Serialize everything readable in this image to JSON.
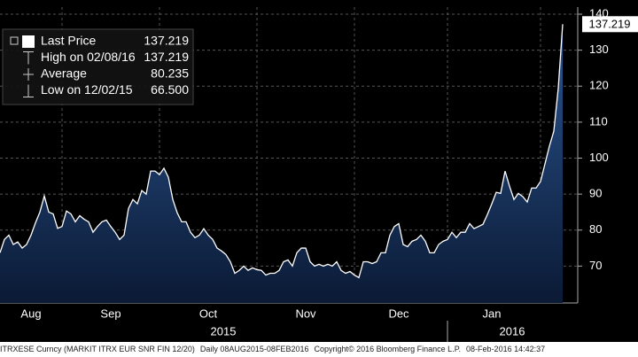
{
  "chart_data": {
    "type": "area",
    "legend": [
      {
        "label": "Last Price",
        "value": "137.219"
      },
      {
        "label": "High on 02/08/16",
        "value": "137.219"
      },
      {
        "label": "Average",
        "value": "80.235"
      },
      {
        "label": "Low on 12/02/15",
        "value": "66.500"
      }
    ],
    "categories": [
      null,
      null,
      null,
      null,
      null,
      null,
      null,
      "Aug",
      null,
      null,
      null,
      null,
      null,
      null,
      null,
      null,
      null,
      null,
      null,
      null,
      null,
      null,
      null,
      null,
      null,
      "Sep",
      null,
      null,
      null,
      null,
      null,
      null,
      null,
      null,
      null,
      null,
      null,
      null,
      null,
      null,
      null,
      null,
      null,
      null,
      null,
      null,
      null,
      "Oct",
      null,
      null,
      null,
      null,
      null,
      null,
      null,
      null,
      null,
      null,
      null,
      null,
      null,
      null,
      null,
      null,
      null,
      null,
      null,
      null,
      null,
      "Nov",
      null,
      null,
      null,
      null,
      null,
      null,
      null,
      null,
      null,
      null,
      null,
      null,
      null,
      null,
      null,
      null,
      null,
      null,
      null,
      null,
      "Dec",
      null,
      null,
      null,
      null,
      null,
      null,
      null,
      null,
      null,
      null,
      null,
      null,
      null,
      null,
      null,
      null,
      null,
      null,
      null,
      null,
      "Jan",
      null,
      null,
      null,
      null,
      null,
      null,
      null,
      null,
      null,
      null,
      null,
      null,
      null,
      null,
      null,
      null
    ],
    "values": [
      73.7,
      77.4,
      78.6,
      76,
      76.7,
      75,
      76,
      78.6,
      82,
      85,
      89.5,
      85,
      84.5,
      80.5,
      81,
      85.3,
      84.5,
      82.3,
      84,
      83,
      82.3,
      79.4,
      81,
      82.3,
      82.8,
      81,
      79.4,
      77.4,
      78.6,
      86,
      88.5,
      87.3,
      91,
      90,
      96.4,
      96.4,
      95.4,
      97.2,
      94.7,
      88.5,
      84.8,
      82.3,
      82.3,
      79.4,
      77.9,
      78.6,
      80.4,
      78.6,
      77.4,
      75,
      74.2,
      73.2,
      71.2,
      68,
      68.8,
      70,
      68.8,
      69.5,
      69,
      68.8,
      67.5,
      68,
      68,
      68.8,
      71.2,
      71.7,
      70,
      73.7,
      75,
      75,
      71.2,
      70,
      70.5,
      70,
      70.5,
      70,
      71.2,
      68.8,
      68,
      68.5,
      67.5,
      66.8,
      71.2,
      71.2,
      70.7,
      71.2,
      73.7,
      73.7,
      78.6,
      81,
      81.8,
      76,
      75.4,
      76.9,
      77.4,
      78.6,
      76.9,
      73.7,
      73.7,
      76,
      76.9,
      77.4,
      79.4,
      77.9,
      79.4,
      79.4,
      81.8,
      80.4,
      81,
      81.6,
      84.3,
      87.3,
      90.5,
      90.2,
      96.4,
      92.2,
      88.5,
      90.2,
      89.3,
      87.8,
      91.7,
      91.7,
      93.5,
      98.4,
      103.3,
      107.5,
      119.4,
      137.219
    ],
    "year_labels": [
      "2015",
      "2016"
    ],
    "ylim": [
      60,
      140
    ],
    "yticks": [
      70,
      80,
      90,
      100,
      110,
      120,
      130,
      140
    ],
    "grid": true,
    "line_color": "#ffffff",
    "fill_color": "#1b3d6e",
    "footer": [
      "ITRXESE Curncy (MARKIT ITRX EUR SNR FIN 12/20)",
      "Daily 08AUG2015-08FEB2016",
      "Copyright© 2016 Bloomberg Finance L.P.",
      "08-Feb-2016 14:42:37"
    ]
  }
}
